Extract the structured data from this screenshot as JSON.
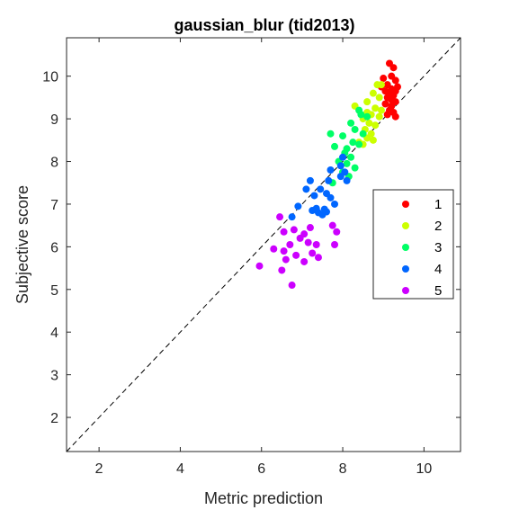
{
  "chart_data": {
    "type": "scatter",
    "title": "gaussian_blur (tid2013)",
    "xlabel": "Metric prediction",
    "ylabel": "Subjective score",
    "xlim": [
      1.2,
      10.9
    ],
    "ylim": [
      1.2,
      10.9
    ],
    "xticks": [
      2,
      4,
      6,
      8,
      10
    ],
    "yticks": [
      2,
      3,
      4,
      5,
      6,
      7,
      8,
      9,
      10
    ],
    "grid": false,
    "reference_line": "dashed diagonal y = x",
    "legend_position": "right",
    "series": [
      {
        "name": "1",
        "color": "#ff0000",
        "points": [
          [
            9.15,
            10.3
          ],
          [
            9.25,
            10.2
          ],
          [
            9.0,
            9.95
          ],
          [
            9.3,
            9.9
          ],
          [
            9.1,
            9.8
          ],
          [
            8.95,
            9.75
          ],
          [
            9.2,
            9.7
          ],
          [
            9.05,
            9.65
          ],
          [
            9.3,
            9.65
          ],
          [
            9.15,
            9.6
          ],
          [
            9.25,
            9.55
          ],
          [
            9.1,
            9.5
          ],
          [
            9.2,
            9.45
          ],
          [
            9.3,
            9.4
          ],
          [
            9.05,
            9.35
          ],
          [
            9.2,
            9.3
          ],
          [
            9.15,
            9.2
          ],
          [
            9.25,
            9.15
          ],
          [
            9.1,
            9.1
          ],
          [
            9.3,
            9.05
          ],
          [
            9.2,
            10.0
          ],
          [
            9.35,
            9.75
          ]
        ]
      },
      {
        "name": "2",
        "color": "#ccff00",
        "points": [
          [
            8.85,
            9.8
          ],
          [
            8.95,
            9.8
          ],
          [
            8.75,
            9.6
          ],
          [
            8.9,
            9.5
          ],
          [
            8.6,
            9.4
          ],
          [
            8.3,
            9.3
          ],
          [
            8.8,
            9.25
          ],
          [
            8.95,
            9.2
          ],
          [
            8.6,
            9.15
          ],
          [
            8.7,
            9.1
          ],
          [
            8.9,
            9.05
          ],
          [
            8.5,
            9.0
          ],
          [
            8.65,
            8.9
          ],
          [
            8.8,
            8.85
          ],
          [
            8.55,
            8.75
          ],
          [
            8.7,
            8.65
          ],
          [
            8.6,
            8.55
          ],
          [
            8.75,
            8.5
          ],
          [
            8.4,
            8.45
          ],
          [
            8.5,
            8.4
          ]
        ]
      },
      {
        "name": "3",
        "color": "#00ff66",
        "points": [
          [
            8.4,
            9.2
          ],
          [
            8.45,
            9.1
          ],
          [
            8.6,
            9.05
          ],
          [
            8.2,
            8.9
          ],
          [
            8.3,
            8.75
          ],
          [
            8.5,
            8.65
          ],
          [
            7.7,
            8.65
          ],
          [
            8.0,
            8.6
          ],
          [
            8.25,
            8.45
          ],
          [
            8.4,
            8.4
          ],
          [
            7.8,
            8.35
          ],
          [
            8.1,
            8.3
          ],
          [
            8.05,
            8.2
          ],
          [
            8.2,
            8.1
          ],
          [
            7.9,
            8.0
          ],
          [
            8.1,
            7.95
          ],
          [
            8.3,
            7.85
          ],
          [
            8.0,
            7.75
          ],
          [
            8.15,
            7.65
          ],
          [
            7.75,
            7.5
          ]
        ]
      },
      {
        "name": "4",
        "color": "#0066ff",
        "points": [
          [
            8.0,
            8.1
          ],
          [
            7.95,
            7.9
          ],
          [
            7.7,
            7.8
          ],
          [
            8.05,
            7.75
          ],
          [
            7.95,
            7.65
          ],
          [
            7.65,
            7.55
          ],
          [
            7.2,
            7.55
          ],
          [
            8.1,
            7.55
          ],
          [
            7.1,
            7.35
          ],
          [
            7.45,
            7.35
          ],
          [
            7.6,
            7.25
          ],
          [
            7.3,
            7.2
          ],
          [
            7.7,
            7.15
          ],
          [
            7.8,
            7.0
          ],
          [
            6.9,
            6.95
          ],
          [
            7.35,
            6.9
          ],
          [
            7.55,
            6.88
          ],
          [
            7.25,
            6.85
          ],
          [
            7.6,
            6.82
          ],
          [
            7.4,
            6.8
          ],
          [
            7.5,
            6.75
          ],
          [
            6.75,
            6.7
          ]
        ]
      },
      {
        "name": "5",
        "color": "#cc00ff",
        "points": [
          [
            6.45,
            6.7
          ],
          [
            7.75,
            6.5
          ],
          [
            7.2,
            6.45
          ],
          [
            6.8,
            6.4
          ],
          [
            6.55,
            6.35
          ],
          [
            7.05,
            6.3
          ],
          [
            7.85,
            6.35
          ],
          [
            6.95,
            6.2
          ],
          [
            7.15,
            6.1
          ],
          [
            6.7,
            6.05
          ],
          [
            7.35,
            6.05
          ],
          [
            6.3,
            5.95
          ],
          [
            7.8,
            6.05
          ],
          [
            6.55,
            5.9
          ],
          [
            7.25,
            5.85
          ],
          [
            6.85,
            5.8
          ],
          [
            7.4,
            5.75
          ],
          [
            6.6,
            5.7
          ],
          [
            7.05,
            5.65
          ],
          [
            5.95,
            5.55
          ],
          [
            6.5,
            5.45
          ],
          [
            6.75,
            5.1
          ]
        ]
      }
    ]
  }
}
